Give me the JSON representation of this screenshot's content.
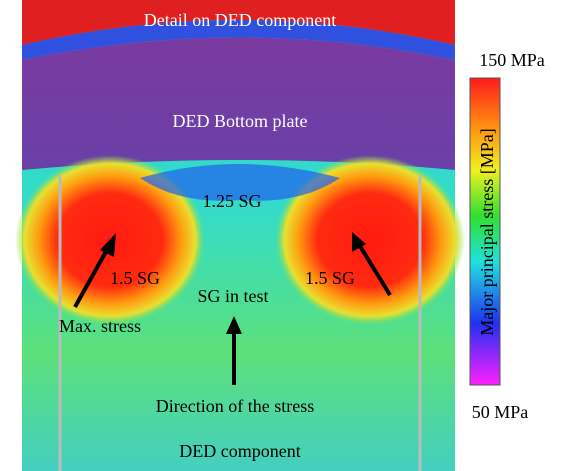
{
  "annotations": {
    "top_detail": "Detail on DED component",
    "plate": "DED Bottom plate",
    "center_gauge": "1.25 SG",
    "left_gauge": "1.5 SG",
    "right_gauge": "1.5 SG",
    "test_gauge": "SG in test",
    "max_stress": "Max. stress",
    "direction": "Direction of the stress",
    "component": "DED component"
  },
  "colorbar": {
    "label": "Major principal stress [MPa]",
    "max_label": "150 MPa",
    "min_label": "50 MPa"
  }
}
